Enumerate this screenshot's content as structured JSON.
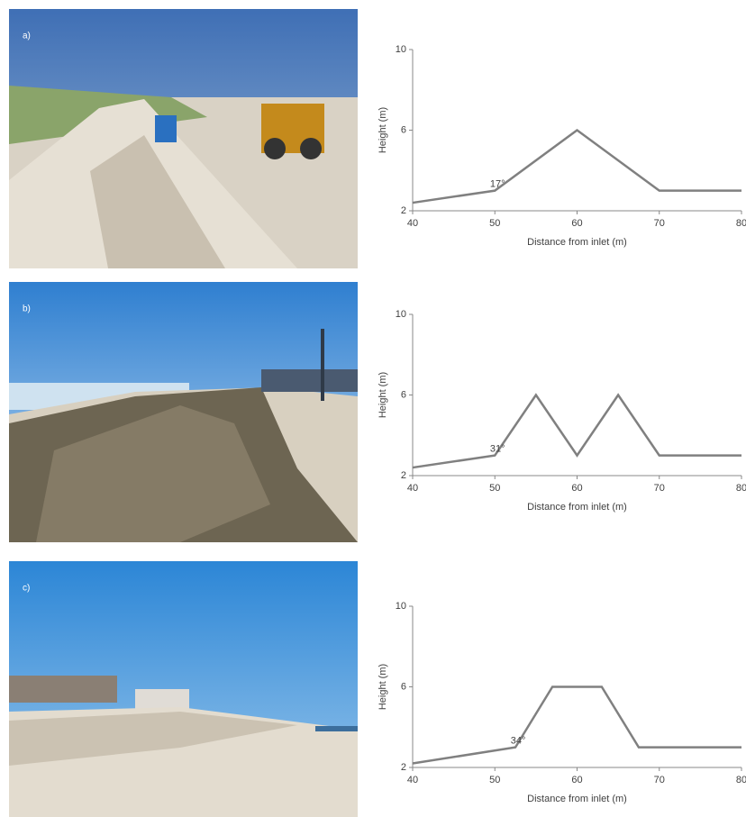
{
  "chart_data": [
    {
      "type": "line",
      "panel_label": "a)",
      "annotation": "17°",
      "xlabel": "Distance from inlet (m)",
      "ylabel": "Height (m)",
      "x": [
        40,
        50,
        60,
        70,
        80
      ],
      "series": [
        {
          "color": "#808080",
          "values": [
            2.4,
            3,
            6,
            3,
            3
          ]
        }
      ],
      "xlim": [
        40,
        80
      ],
      "ylim": [
        2,
        10
      ],
      "xticks": [
        40,
        50,
        60,
        70,
        80
      ],
      "yticks": [
        2,
        6,
        10
      ]
    },
    {
      "type": "line",
      "panel_label": "b)",
      "annotation": "31°",
      "xlabel": "Distance from inlet (m)",
      "ylabel": "Height (m)",
      "x": [
        40,
        50,
        55,
        60,
        65,
        70,
        80
      ],
      "series": [
        {
          "color": "#808080",
          "values": [
            2.4,
            3,
            6,
            3,
            6,
            3,
            3
          ]
        }
      ],
      "xlim": [
        40,
        80
      ],
      "ylim": [
        2,
        10
      ],
      "xticks": [
        40,
        50,
        60,
        70,
        80
      ],
      "yticks": [
        2,
        6,
        10
      ]
    },
    {
      "type": "line",
      "panel_label": "c)",
      "annotation": "34°",
      "xlabel": "Distance from inlet (m)",
      "ylabel": "Height (m)",
      "x": [
        40,
        52.5,
        57,
        63,
        67.5,
        80
      ],
      "series": [
        {
          "color": "#808080",
          "values": [
            2.2,
            3,
            6,
            6,
            3,
            3
          ]
        }
      ],
      "xlim": [
        40,
        80
      ],
      "ylim": [
        2,
        10
      ],
      "xticks": [
        40,
        50,
        60,
        70,
        80
      ],
      "yticks": [
        2,
        6,
        10
      ]
    }
  ]
}
